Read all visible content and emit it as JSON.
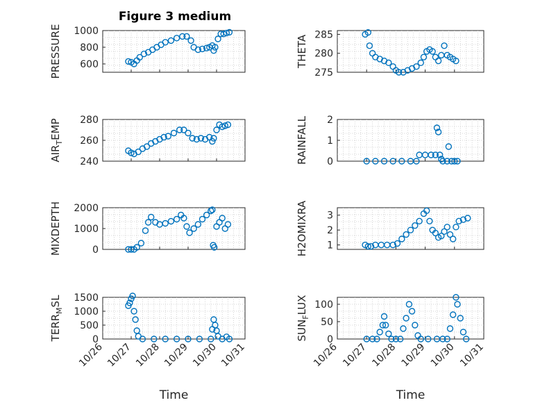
{
  "figure": {
    "title": "Figure 3 medium"
  },
  "marker_color": "#0072BD",
  "chart_data": [
    {
      "type": "scatter",
      "title": "Figure 3 medium",
      "ylabel": "PRESSURE",
      "xlabel": "",
      "xlim": [
        0,
        5
      ],
      "ylim": [
        500,
        1000
      ],
      "yticks": [
        600,
        800,
        1000
      ],
      "ytick_labels": [
        "600",
        "800",
        "1000"
      ],
      "grid": true,
      "points": [
        [
          0.9,
          630
        ],
        [
          1.0,
          620
        ],
        [
          1.1,
          600
        ],
        [
          1.2,
          640
        ],
        [
          1.3,
          680
        ],
        [
          1.45,
          720
        ],
        [
          1.6,
          740
        ],
        [
          1.75,
          770
        ],
        [
          1.9,
          800
        ],
        [
          2.05,
          830
        ],
        [
          2.2,
          860
        ],
        [
          2.4,
          880
        ],
        [
          2.6,
          910
        ],
        [
          2.8,
          930
        ],
        [
          2.95,
          930
        ],
        [
          3.1,
          880
        ],
        [
          3.2,
          800
        ],
        [
          3.35,
          770
        ],
        [
          3.5,
          780
        ],
        [
          3.65,
          790
        ],
        [
          3.75,
          800
        ],
        [
          3.85,
          820
        ],
        [
          3.9,
          760
        ],
        [
          3.95,
          800
        ],
        [
          4.05,
          900
        ],
        [
          4.15,
          960
        ],
        [
          4.25,
          960
        ],
        [
          4.35,
          970
        ],
        [
          4.45,
          980
        ]
      ]
    },
    {
      "type": "scatter",
      "title": "",
      "ylabel": "THETA",
      "xlabel": "",
      "xlim": [
        0,
        5
      ],
      "ylim": [
        275,
        286
      ],
      "yticks": [
        275,
        280,
        285
      ],
      "ytick_labels": [
        "275",
        "280",
        "285"
      ],
      "grid": true,
      "points": [
        [
          0.95,
          285
        ],
        [
          1.05,
          285.5
        ],
        [
          1.1,
          282
        ],
        [
          1.2,
          280
        ],
        [
          1.3,
          279
        ],
        [
          1.45,
          278.5
        ],
        [
          1.6,
          278
        ],
        [
          1.75,
          277.5
        ],
        [
          1.9,
          276.5
        ],
        [
          2.0,
          275.5
        ],
        [
          2.1,
          275
        ],
        [
          2.25,
          275
        ],
        [
          2.4,
          275.5
        ],
        [
          2.55,
          276
        ],
        [
          2.7,
          276.5
        ],
        [
          2.85,
          277.5
        ],
        [
          2.95,
          279
        ],
        [
          3.05,
          280.5
        ],
        [
          3.15,
          281
        ],
        [
          3.25,
          280.5
        ],
        [
          3.35,
          279
        ],
        [
          3.45,
          278
        ],
        [
          3.55,
          279.5
        ],
        [
          3.65,
          282
        ],
        [
          3.75,
          279.5
        ],
        [
          3.85,
          279
        ],
        [
          3.95,
          278.5
        ],
        [
          4.05,
          278
        ]
      ]
    },
    {
      "type": "scatter",
      "title": "",
      "ylabel": "AIR_TEMP",
      "xlabel": "",
      "xlim": [
        0,
        5
      ],
      "ylim": [
        240,
        280
      ],
      "yticks": [
        240,
        260,
        280
      ],
      "ytick_labels": [
        "240",
        "260",
        "280"
      ],
      "grid": true,
      "points": [
        [
          0.9,
          250
        ],
        [
          1.0,
          248
        ],
        [
          1.1,
          247
        ],
        [
          1.25,
          249
        ],
        [
          1.4,
          252
        ],
        [
          1.55,
          254
        ],
        [
          1.7,
          257
        ],
        [
          1.85,
          259
        ],
        [
          2.0,
          261
        ],
        [
          2.15,
          263
        ],
        [
          2.3,
          264
        ],
        [
          2.5,
          267
        ],
        [
          2.7,
          270
        ],
        [
          2.85,
          270
        ],
        [
          3.0,
          267
        ],
        [
          3.15,
          262
        ],
        [
          3.3,
          261
        ],
        [
          3.45,
          262
        ],
        [
          3.6,
          261
        ],
        [
          3.75,
          263
        ],
        [
          3.85,
          259
        ],
        [
          3.9,
          262
        ],
        [
          4.0,
          270
        ],
        [
          4.1,
          275
        ],
        [
          4.2,
          273
        ],
        [
          4.3,
          274
        ],
        [
          4.4,
          275
        ]
      ]
    },
    {
      "type": "scatter",
      "title": "",
      "ylabel": "RAINFALL",
      "xlabel": "",
      "xlim": [
        0,
        5
      ],
      "ylim": [
        0,
        2
      ],
      "yticks": [
        0,
        1,
        2
      ],
      "ytick_labels": [
        "0",
        "1",
        "2"
      ],
      "grid": true,
      "points": [
        [
          1.0,
          0
        ],
        [
          1.3,
          0
        ],
        [
          1.6,
          0
        ],
        [
          1.9,
          0
        ],
        [
          2.2,
          0
        ],
        [
          2.5,
          0
        ],
        [
          2.7,
          0
        ],
        [
          2.8,
          0.3
        ],
        [
          3.0,
          0.3
        ],
        [
          3.2,
          0.3
        ],
        [
          3.35,
          0.3
        ],
        [
          3.4,
          1.6
        ],
        [
          3.45,
          1.4
        ],
        [
          3.5,
          0.3
        ],
        [
          3.55,
          0.1
        ],
        [
          3.6,
          0
        ],
        [
          3.75,
          0
        ],
        [
          3.8,
          0.7
        ],
        [
          3.9,
          0
        ],
        [
          4.0,
          0
        ],
        [
          4.1,
          0
        ]
      ]
    },
    {
      "type": "scatter",
      "title": "",
      "ylabel": "MIXDEPTH",
      "xlabel": "",
      "xlim": [
        0,
        5
      ],
      "ylim": [
        0,
        2000
      ],
      "yticks": [
        0,
        1000,
        2000
      ],
      "ytick_labels": [
        "0",
        "1000",
        "2000"
      ],
      "grid": true,
      "points": [
        [
          0.9,
          0
        ],
        [
          1.0,
          0
        ],
        [
          1.1,
          0
        ],
        [
          1.2,
          100
        ],
        [
          1.35,
          300
        ],
        [
          1.5,
          900
        ],
        [
          1.6,
          1300
        ],
        [
          1.7,
          1550
        ],
        [
          1.85,
          1300
        ],
        [
          2.0,
          1200
        ],
        [
          2.2,
          1250
        ],
        [
          2.4,
          1350
        ],
        [
          2.6,
          1450
        ],
        [
          2.75,
          1650
        ],
        [
          2.85,
          1500
        ],
        [
          2.95,
          1100
        ],
        [
          3.05,
          800
        ],
        [
          3.2,
          1000
        ],
        [
          3.35,
          1200
        ],
        [
          3.5,
          1450
        ],
        [
          3.65,
          1650
        ],
        [
          3.8,
          1850
        ],
        [
          3.85,
          1900
        ],
        [
          3.88,
          200
        ],
        [
          3.92,
          100
        ],
        [
          4.0,
          1100
        ],
        [
          4.1,
          1300
        ],
        [
          4.2,
          1500
        ],
        [
          4.3,
          1000
        ],
        [
          4.4,
          1200
        ]
      ]
    },
    {
      "type": "scatter",
      "title": "",
      "ylabel": "H2OMIXRA",
      "xlabel": "",
      "xlim": [
        0,
        5
      ],
      "ylim": [
        0.7,
        3.5
      ],
      "yticks": [
        1,
        2,
        3
      ],
      "ytick_labels": [
        "1",
        "2",
        "3"
      ],
      "grid": true,
      "points": [
        [
          0.95,
          1.0
        ],
        [
          1.05,
          0.9
        ],
        [
          1.15,
          0.9
        ],
        [
          1.3,
          1.0
        ],
        [
          1.5,
          1.0
        ],
        [
          1.7,
          1.0
        ],
        [
          1.9,
          1.0
        ],
        [
          2.05,
          1.1
        ],
        [
          2.2,
          1.4
        ],
        [
          2.35,
          1.7
        ],
        [
          2.5,
          2.0
        ],
        [
          2.65,
          2.3
        ],
        [
          2.8,
          2.6
        ],
        [
          2.95,
          3.1
        ],
        [
          3.05,
          3.3
        ],
        [
          3.15,
          2.6
        ],
        [
          3.25,
          2.0
        ],
        [
          3.35,
          1.8
        ],
        [
          3.45,
          1.5
        ],
        [
          3.55,
          1.6
        ],
        [
          3.65,
          1.9
        ],
        [
          3.75,
          2.2
        ],
        [
          3.85,
          1.7
        ],
        [
          3.95,
          1.4
        ],
        [
          4.05,
          2.2
        ],
        [
          4.15,
          2.6
        ],
        [
          4.3,
          2.7
        ],
        [
          4.45,
          2.8
        ]
      ]
    },
    {
      "type": "scatter",
      "title": "",
      "ylabel": "TERR_MSL",
      "xlabel": "Time",
      "xlim": [
        0,
        5
      ],
      "ylim": [
        0,
        1500
      ],
      "yticks": [
        0,
        500,
        1000,
        1500
      ],
      "ytick_labels": [
        "0",
        "500",
        "1000",
        "1500"
      ],
      "xtick_labels": [
        "10/26",
        "10/27",
        "10/28",
        "10/29",
        "10/30",
        "10/31"
      ],
      "grid": true,
      "points": [
        [
          0.9,
          1200
        ],
        [
          0.95,
          1300
        ],
        [
          1.0,
          1450
        ],
        [
          1.05,
          1550
        ],
        [
          1.1,
          1000
        ],
        [
          1.15,
          700
        ],
        [
          1.2,
          300
        ],
        [
          1.25,
          100
        ],
        [
          1.4,
          0
        ],
        [
          1.8,
          0
        ],
        [
          2.2,
          0
        ],
        [
          2.6,
          0
        ],
        [
          3.0,
          0
        ],
        [
          3.4,
          0
        ],
        [
          3.8,
          0
        ],
        [
          3.85,
          350
        ],
        [
          3.9,
          700
        ],
        [
          3.95,
          500
        ],
        [
          4.0,
          300
        ],
        [
          4.05,
          100
        ],
        [
          4.2,
          0
        ],
        [
          4.35,
          80
        ],
        [
          4.45,
          0
        ]
      ]
    },
    {
      "type": "scatter",
      "title": "",
      "ylabel": "SUN_FLUX",
      "xlabel": "Time",
      "xlim": [
        0,
        5
      ],
      "ylim": [
        0,
        120
      ],
      "yticks": [
        0,
        50,
        100
      ],
      "ytick_labels": [
        "0",
        "50",
        "100"
      ],
      "xtick_labels": [
        "10/26",
        "10/27",
        "10/28",
        "10/29",
        "10/30",
        "10/31"
      ],
      "grid": true,
      "points": [
        [
          1.0,
          0
        ],
        [
          1.2,
          0
        ],
        [
          1.35,
          0
        ],
        [
          1.45,
          20
        ],
        [
          1.55,
          40
        ],
        [
          1.6,
          65
        ],
        [
          1.65,
          40
        ],
        [
          1.75,
          15
        ],
        [
          1.85,
          0
        ],
        [
          2.0,
          0
        ],
        [
          2.15,
          0
        ],
        [
          2.25,
          30
        ],
        [
          2.35,
          60
        ],
        [
          2.45,
          100
        ],
        [
          2.55,
          80
        ],
        [
          2.65,
          40
        ],
        [
          2.75,
          10
        ],
        [
          2.85,
          0
        ],
        [
          3.1,
          0
        ],
        [
          3.4,
          0
        ],
        [
          3.6,
          0
        ],
        [
          3.75,
          0
        ],
        [
          3.85,
          30
        ],
        [
          3.95,
          70
        ],
        [
          4.05,
          120
        ],
        [
          4.1,
          100
        ],
        [
          4.2,
          60
        ],
        [
          4.3,
          20
        ],
        [
          4.4,
          0
        ]
      ]
    }
  ]
}
